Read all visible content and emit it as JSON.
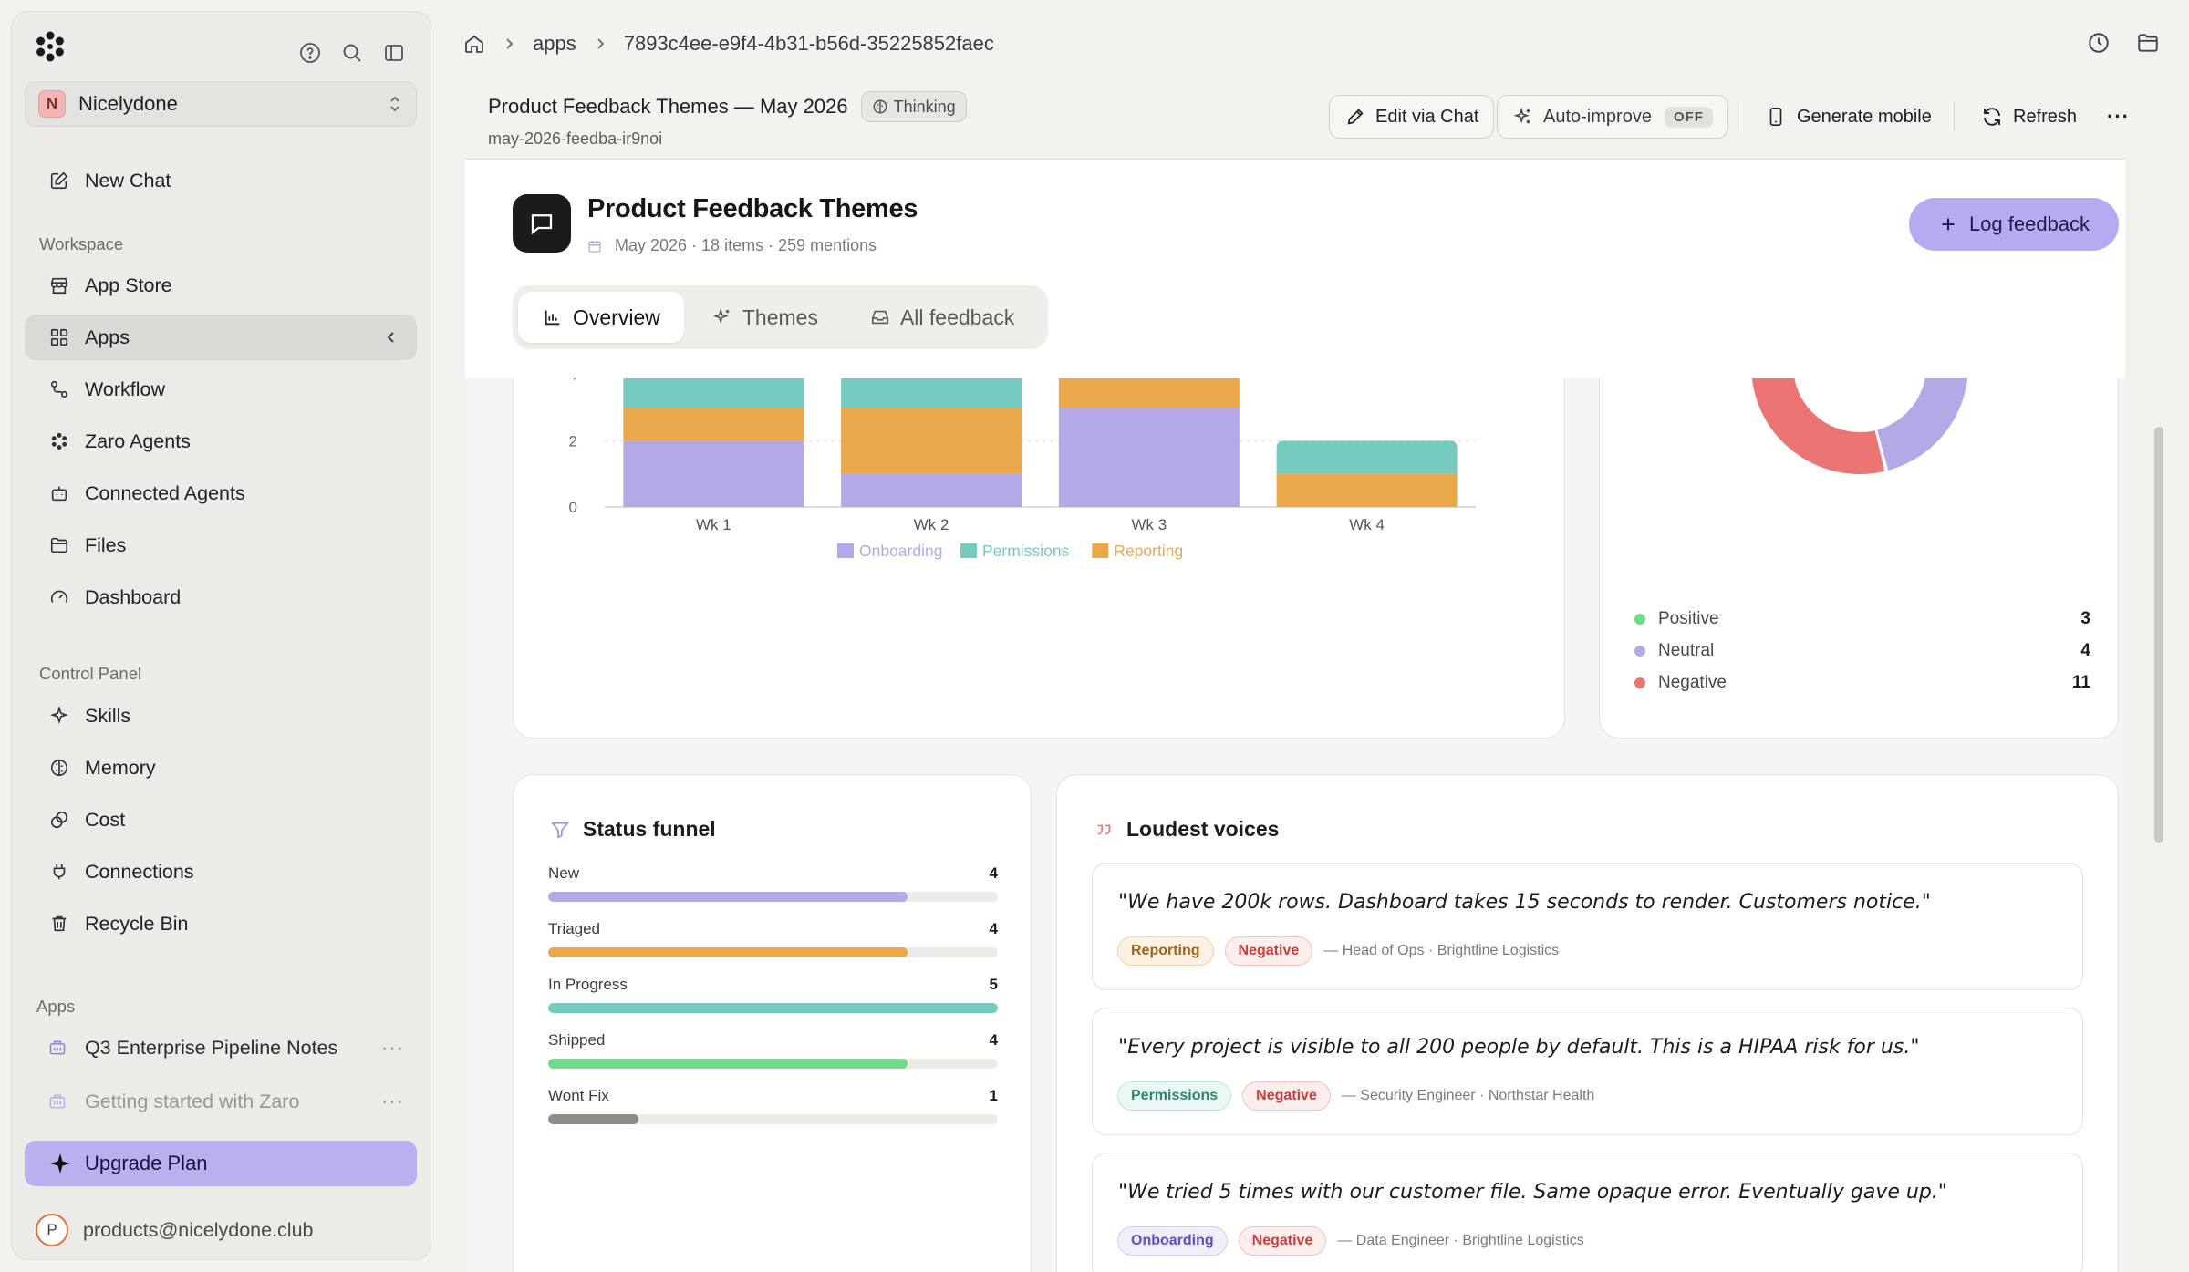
{
  "sidebar": {
    "workspace": {
      "initial": "N",
      "name": "Nicelydone"
    },
    "new_chat": "New Chat",
    "workspace_label": "Workspace",
    "workspace_items": [
      {
        "label": "App Store",
        "icon": "store-icon"
      },
      {
        "label": "Apps",
        "icon": "apps-grid-icon"
      },
      {
        "label": "Workflow",
        "icon": "workflow-icon"
      },
      {
        "label": "Zaro Agents",
        "icon": "agents-icon"
      },
      {
        "label": "Connected Agents",
        "icon": "robot-icon"
      },
      {
        "label": "Files",
        "icon": "folder-icon"
      },
      {
        "label": "Dashboard",
        "icon": "gauge-icon"
      }
    ],
    "control_label": "Control Panel",
    "control_items": [
      {
        "label": "Skills",
        "icon": "sparkle-icon"
      },
      {
        "label": "Memory",
        "icon": "brain-icon"
      },
      {
        "label": "Cost",
        "icon": "coins-icon"
      },
      {
        "label": "Connections",
        "icon": "plug-icon"
      },
      {
        "label": "Recycle Bin",
        "icon": "trash-icon"
      }
    ],
    "apps_label": "Apps",
    "apps": [
      {
        "label": "Q3 Enterprise Pipeline Notes"
      },
      {
        "label": "Getting started with Zaro"
      }
    ],
    "upgrade": "Upgrade Plan",
    "user": {
      "initial": "P",
      "email": "products@nicelydone.club"
    }
  },
  "breadcrumb": {
    "root": "apps",
    "id": "7893c4ee-e9f4-4b31-b56d-35225852faec"
  },
  "app": {
    "title": "Product Feedback Themes — May 2026",
    "thinking": "Thinking",
    "slug": "may-2026-feedba-ir9noi"
  },
  "toolbar": {
    "edit": "Edit via Chat",
    "auto_improve": "Auto-improve",
    "auto_improve_state": "OFF",
    "generate_mobile": "Generate mobile",
    "refresh": "Refresh",
    "more": "···"
  },
  "page": {
    "title": "Product Feedback Themes",
    "meta": "May 2026 · 18 items · 259 mentions",
    "log_button": "Log feedback",
    "tabs": [
      {
        "label": "Overview",
        "icon": "bar-chart-icon"
      },
      {
        "label": "Themes",
        "icon": "sparkle-icon"
      },
      {
        "label": "All feedback",
        "icon": "inbox-icon"
      }
    ]
  },
  "chart_data": [
    {
      "type": "bar",
      "stacked": true,
      "categories": [
        "Wk 1",
        "Wk 2",
        "Wk 3",
        "Wk 4"
      ],
      "series": [
        {
          "name": "Onboarding",
          "values": [
            2,
            1,
            3,
            0
          ],
          "color": "#b4a8e6"
        },
        {
          "name": "Reporting",
          "values": [
            1,
            2,
            2,
            1
          ],
          "color": "#e9a84a"
        },
        {
          "name": "Permissions",
          "values": [
            2,
            2,
            1,
            1
          ],
          "color": "#74cbc0"
        }
      ],
      "ylim": [
        0,
        6
      ],
      "yticks": [
        0,
        2,
        4,
        6
      ],
      "legend": "bottom",
      "legend_order": [
        "Onboarding",
        "Permissions",
        "Reporting"
      ],
      "grid": true
    },
    {
      "type": "pie",
      "donut": true,
      "series": [
        {
          "name": "Positive",
          "value": 3,
          "color": "#72d98a"
        },
        {
          "name": "Neutral",
          "value": 4,
          "color": "#b4a8e6"
        },
        {
          "name": "Negative",
          "value": 11,
          "color": "#ec7472"
        }
      ]
    }
  ],
  "funnel": {
    "title": "Status funnel",
    "max": 5,
    "rows": [
      {
        "label": "New",
        "value": "4",
        "n": 4,
        "color": "#b4a8e6"
      },
      {
        "label": "Triaged",
        "value": "4",
        "n": 4,
        "color": "#e9a84a"
      },
      {
        "label": "In Progress",
        "value": "5",
        "n": 5,
        "color": "#74cbc0"
      },
      {
        "label": "Shipped",
        "value": "4",
        "n": 4,
        "color": "#72d98a"
      },
      {
        "label": "Wont Fix",
        "value": "1",
        "n": 1,
        "color": "#8d8c89"
      }
    ]
  },
  "voices": {
    "title": "Loudest voices",
    "items": [
      {
        "quote": "\"We have 200k rows. Dashboard takes 15 seconds to render. Customers notice.\"",
        "theme": "Reporting",
        "sentiment": "Negative",
        "source": "— Head of Ops · Brightline Logistics"
      },
      {
        "quote": "\"Every project is visible to all 200 people by default. This is a HIPAA risk for us.\"",
        "theme": "Permissions",
        "sentiment": "Negative",
        "source": "— Security Engineer · Northstar Health"
      },
      {
        "quote": "\"We tried 5 times with our customer file. Same opaque error. Eventually gave up.\"",
        "theme": "Onboarding",
        "sentiment": "Negative",
        "source": "— Data Engineer · Brightline Logistics"
      }
    ]
  },
  "colors": {
    "accent": "#b6aaf1",
    "onboarding": "#b4a8e6",
    "reporting": "#e9a84a",
    "permissions": "#74cbc0",
    "positive": "#72d98a",
    "negative": "#ec7472"
  }
}
